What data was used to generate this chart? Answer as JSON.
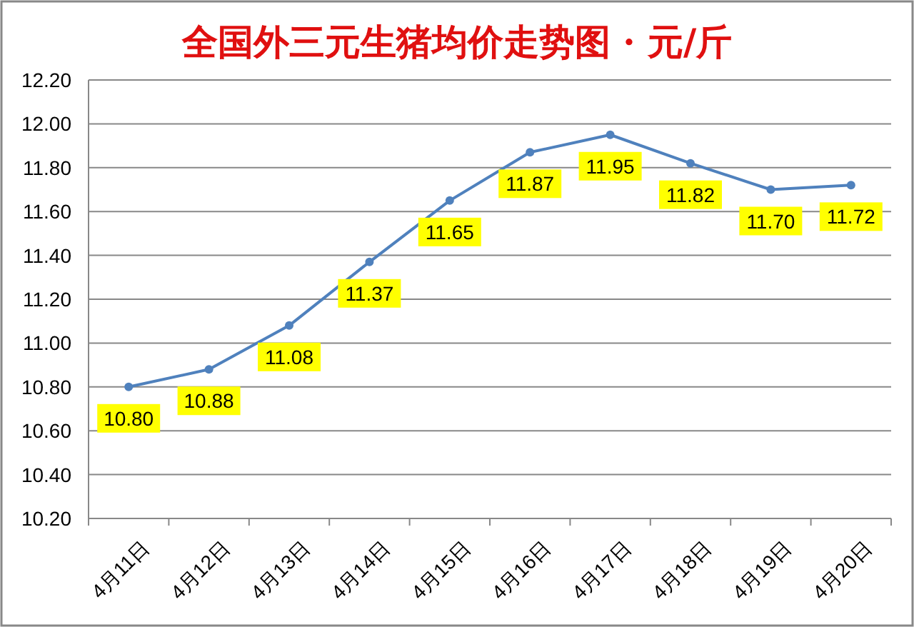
{
  "chart_data": {
    "type": "line",
    "title": "全国外三元生猪均价走势图 · 元/斤",
    "categories": [
      "4月11日",
      "4月12日",
      "4月13日",
      "4月14日",
      "4月15日",
      "4月16日",
      "4月17日",
      "4月18日",
      "4月19日",
      "4月20日"
    ],
    "series": [
      {
        "color": "#4f81bd",
        "values": [
          10.8,
          10.88,
          11.08,
          11.37,
          11.65,
          11.87,
          11.95,
          11.82,
          11.7,
          11.72
        ],
        "value_labels": [
          "10.80",
          "10.88",
          "11.08",
          "11.37",
          "11.65",
          "11.87",
          "11.95",
          "11.82",
          "11.70",
          "11.72"
        ]
      }
    ],
    "ylim": [
      10.2,
      12.2
    ],
    "yticks": [
      {
        "value": 10.2,
        "label": "10.20"
      },
      {
        "value": 10.4,
        "label": "10.40"
      },
      {
        "value": 10.6,
        "label": "10.60"
      },
      {
        "value": 10.8,
        "label": "10.80"
      },
      {
        "value": 11.0,
        "label": "11.00"
      },
      {
        "value": 11.2,
        "label": "11.20"
      },
      {
        "value": 11.4,
        "label": "11.40"
      },
      {
        "value": 11.6,
        "label": "11.60"
      },
      {
        "value": 11.8,
        "label": "11.80"
      },
      {
        "value": 12.0,
        "label": "12.00"
      },
      {
        "value": 12.2,
        "label": "12.20"
      }
    ],
    "grid": "y",
    "marker": "circle",
    "line_style": "solid"
  }
}
